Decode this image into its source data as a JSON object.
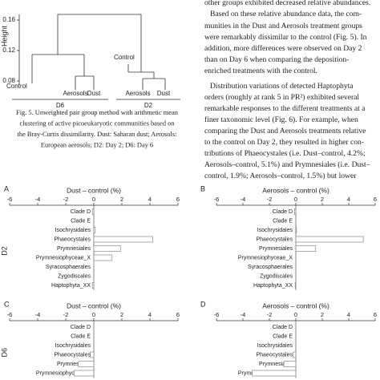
{
  "dendrogram": {
    "y_label": "Height",
    "ylim": [
      0.08,
      0.16
    ],
    "yticks": [
      0.08,
      0.12,
      0.16
    ],
    "leaves": [
      "Control",
      "Aerosols",
      "Dust",
      "Control",
      "Aerosols",
      "Dust"
    ],
    "groups": [
      "D6",
      "D2"
    ]
  },
  "caption": [
    "Fig. 5. Unweighted pair group method with arithmetic mean",
    "clustering of active picoeukaryotic communities based on",
    "the Bray-Curtis dissimilarity. Dust: Saharan dust; Aerosols:",
    "European aerosols; D2: Day 2; D6: Day 6"
  ],
  "body_text": [
    "other groups exhibited decreased relative abundances.",
    "Based on these relative abundance data, the com-",
    "munities in the Dust and Aerosols treatment groups",
    "were remarkably dissimilar to the control (Fig. 5). In",
    "addition, more differences were observed on Day 2",
    "than on Day 6 when comparing the deposition-",
    "enriched treatments with the control.",
    "Distribution variations of detected Haptophyta",
    "orders (roughly at rank 5 in PR²) exhibited several",
    "remarkable responses to the different treatments at a",
    "finer taxonomic level (Fig. 6). For example, when",
    "comparing the Dust and Aerosols treatments relative",
    "to the control on Day 2, they resulted in higher con-",
    "tributions of Phaeocystales (i.e. Dust–control, 4.2%;",
    "Aerosols–control, 5.1%) and Prymnesiales (i.e. Dust–",
    "control, 1.9%; Aerosols–control, 1.5%) but lower"
  ],
  "chart_data": [
    {
      "type": "bar",
      "panel": "A",
      "row_label": "D2",
      "title": "Dust – control (%)",
      "categories": [
        "Clade D",
        "Clade E",
        "Isochrysidales",
        "Phaeocystales",
        "Prymnesiales",
        "Prymnesiophyceae_X",
        "Syracosphaerales",
        "Zygodiscales",
        "Haptophyta_XX"
      ],
      "values": [
        -0.1,
        0,
        0.1,
        4.2,
        1.9,
        1.3,
        0,
        0,
        -0.1
      ],
      "xlim": [
        -6,
        6
      ],
      "xticks": [
        -6,
        -4,
        -2,
        0,
        2,
        4,
        6
      ],
      "color": "#ffffff"
    },
    {
      "type": "bar",
      "panel": "B",
      "title": "Aerosols – control (%)",
      "categories": [
        "Clade D",
        "Clade E",
        "Isochrysidales",
        "Phaeocystales",
        "Prymnesiales",
        "Prymnesiophyceae_X",
        "Syracosphaerales",
        "Zygodiscales",
        "Haptophyta_XX"
      ],
      "values": [
        -0.1,
        0,
        0.05,
        5.1,
        1.5,
        0,
        0,
        0,
        -0.05
      ],
      "xlim": [
        -6,
        6
      ],
      "xticks": [
        -6,
        -4,
        -2,
        0,
        2,
        4,
        6
      ],
      "color": "#ffffff"
    },
    {
      "type": "bar",
      "panel": "C",
      "row_label": "D6",
      "title": "Dust – control (%)",
      "categories": [
        "Clade D",
        "Clade E",
        "Isochrysidales",
        "Phaeocystales",
        "Prymnesiales",
        "Prymnesiophyceae_X"
      ],
      "values": [
        0,
        0,
        0,
        -0.25,
        -1.1,
        -1.4
      ],
      "xlim": [
        -6,
        6
      ],
      "xticks": [
        -6,
        -4,
        -2,
        0,
        2,
        4,
        6
      ],
      "color": "#ffffff"
    },
    {
      "type": "bar",
      "panel": "D",
      "title": "Aerosols – control (%)",
      "categories": [
        "Clade D",
        "Clade E",
        "Isochrysidales",
        "Phaeocystales",
        "Prymnesiales",
        "Prymnesiophyceae_X"
      ],
      "values": [
        0,
        0,
        0,
        -0.2,
        -0.9,
        -3.3
      ],
      "xlim": [
        -6,
        6
      ],
      "xticks": [
        -6,
        -4,
        -2,
        0,
        2,
        4,
        6
      ],
      "color": "#ffffff"
    }
  ]
}
